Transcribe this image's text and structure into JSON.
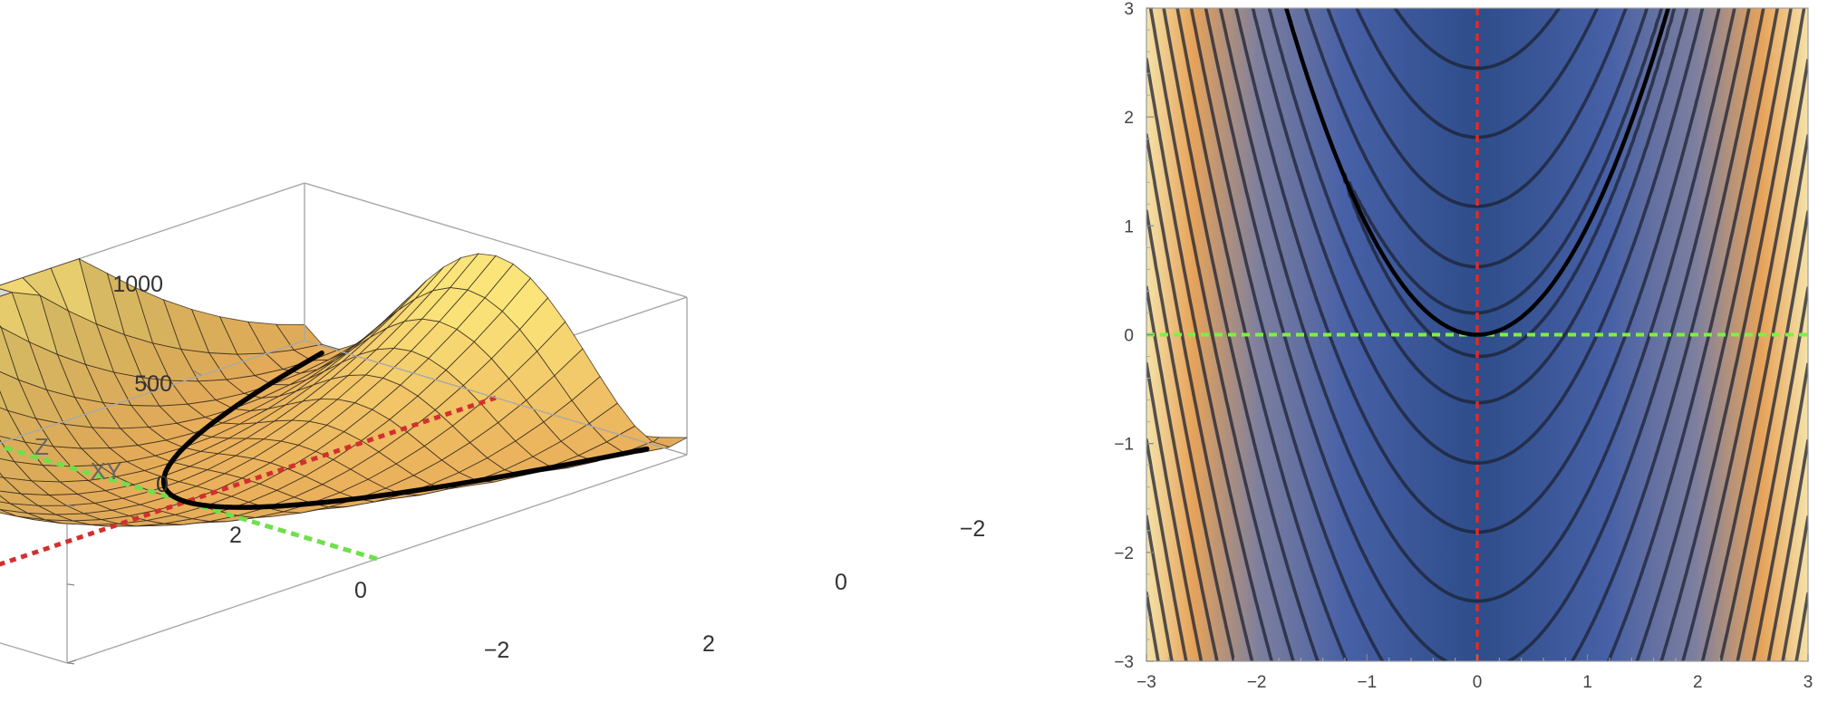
{
  "chart_data": [
    {
      "type": "surface3d",
      "title": "",
      "z_function": "100*(y - x^2)^2 + (1 - x)^2",
      "x_range": [
        -2,
        2
      ],
      "y_range": [
        -3,
        3
      ],
      "z_range": [
        0,
        1000
      ],
      "z_clipped": true,
      "axis_labels": {
        "z": "Z",
        "xy": "XY"
      },
      "z_ticks": [
        "0",
        "500",
        "1000"
      ],
      "x_ticks": [
        "2",
        "0",
        "−2"
      ],
      "y_ticks": [
        "−2",
        "0",
        "2"
      ],
      "curves": [
        {
          "name": "",
          "equation": "y = x^2",
          "color": "#000000",
          "style": "solid"
        },
        {
          "name": "",
          "equation": "x = 0",
          "color": "#d42f2f",
          "style": "dotted"
        },
        {
          "name": "",
          "equation": "y = 0",
          "color": "#6fe04a",
          "style": "dotted"
        }
      ],
      "colors": {
        "low": "#e0924a",
        "high": "#fbe57a",
        "cap": "#d9d9d9"
      }
    },
    {
      "type": "contour",
      "title": "",
      "z_function": "100*(y - x^2)^2 + (1 - x)^2",
      "x_range": [
        -3,
        3
      ],
      "y_range": [
        -3,
        3
      ],
      "x_ticks": [
        "−3",
        "−2",
        "−1",
        "0",
        "1",
        "2",
        "3"
      ],
      "y_ticks": [
        "−3",
        "−2",
        "−1",
        "0",
        "1",
        "2",
        "3"
      ],
      "contour_levels": [
        5,
        40,
        140,
        330,
        600,
        950,
        1400,
        1950,
        2600,
        3350,
        4200,
        5150,
        6200,
        7350,
        8600,
        9950,
        11400,
        12950,
        14600
      ],
      "curves": [
        {
          "name": "",
          "equation": "y = x^2",
          "color": "#000000",
          "style": "solid"
        },
        {
          "name": "",
          "equation": "x = 0",
          "color": "#e02a2a",
          "style": "dashed"
        },
        {
          "name": "",
          "equation": "y = 0",
          "color": "#7df043",
          "style": "dashed"
        }
      ],
      "colors": {
        "low": "#2e4d8a",
        "mid": "#6a7fc4",
        "high": "#e6a35a",
        "edge": "#f5e2a8"
      }
    }
  ]
}
